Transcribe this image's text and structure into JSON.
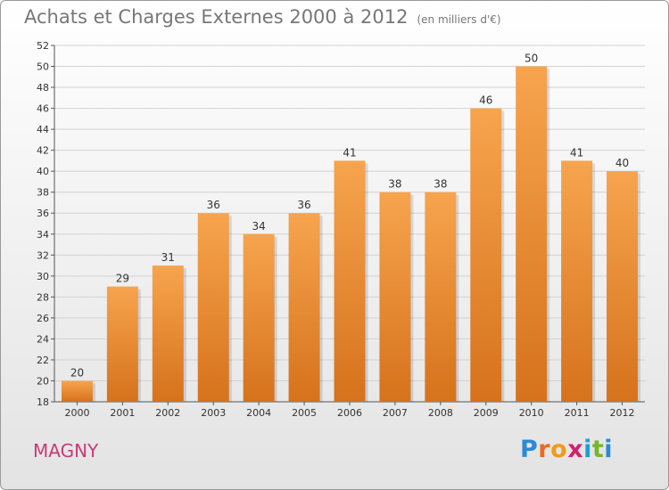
{
  "chart_data": {
    "type": "bar",
    "title": "Achats et Charges Externes 2000 à 2012",
    "subtitle": "(en milliers d'€)",
    "categories": [
      "2000",
      "2001",
      "2002",
      "2003",
      "2004",
      "2005",
      "2006",
      "2007",
      "2008",
      "2009",
      "2010",
      "2011",
      "2012"
    ],
    "values": [
      20,
      29,
      31,
      36,
      34,
      36,
      41,
      38,
      38,
      46,
      50,
      41,
      40
    ],
    "ylim": [
      18,
      52
    ],
    "yticks": [
      18,
      20,
      22,
      24,
      26,
      28,
      30,
      32,
      34,
      36,
      38,
      40,
      42,
      44,
      46,
      48,
      50,
      52
    ],
    "xlabel": "",
    "ylabel": "",
    "grid": true,
    "bar_color_top": "#f7a44e",
    "bar_color_bottom": "#d6721c"
  },
  "footer": {
    "city": "MAGNY",
    "logo_letters": [
      "P",
      "r",
      "o",
      "x",
      "i",
      "t",
      "i"
    ]
  }
}
